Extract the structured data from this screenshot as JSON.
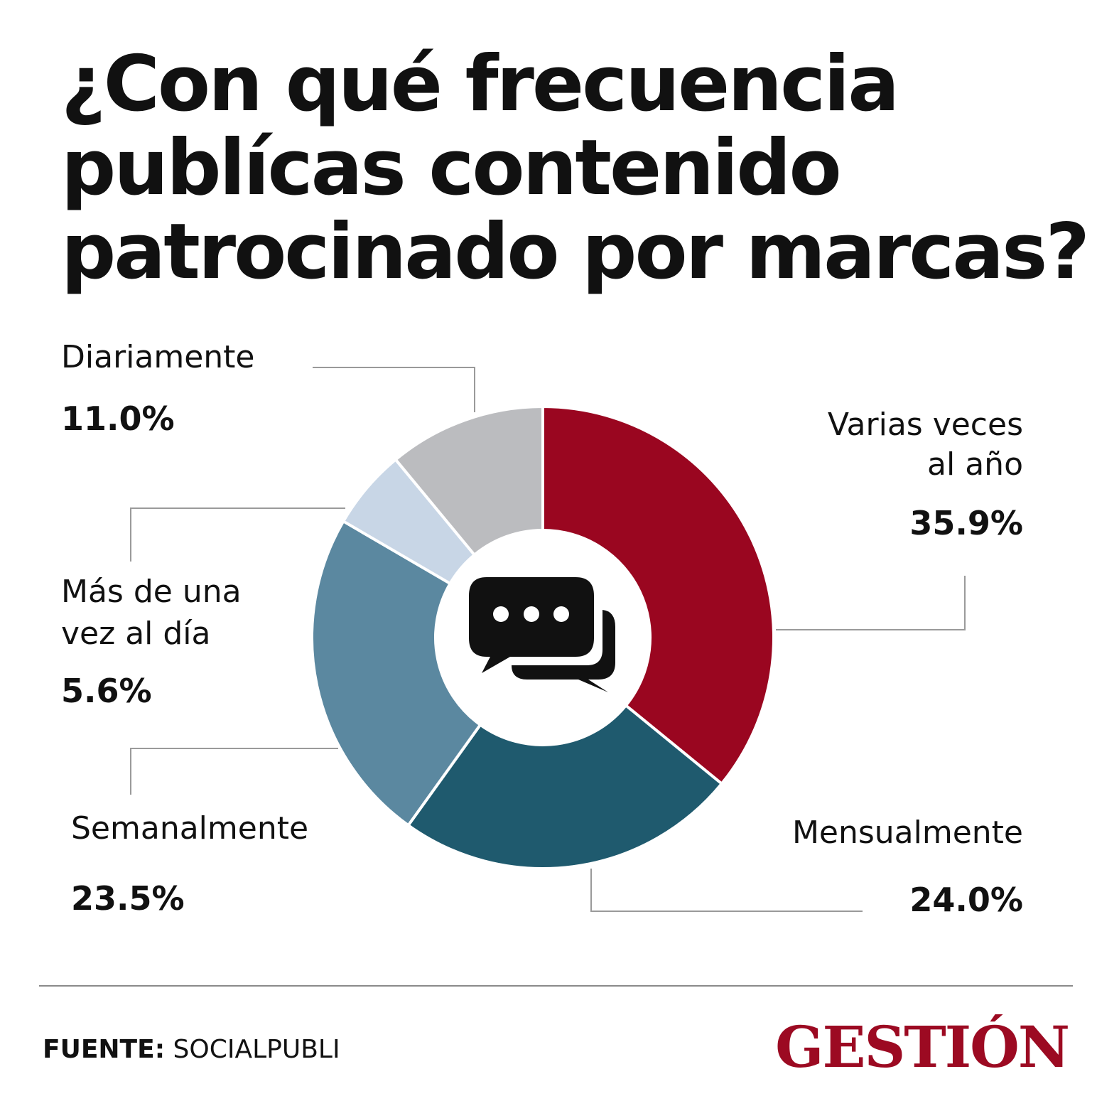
{
  "chart_data": {
    "type": "pie",
    "title": "¿Con qué frecuencia publícas contenido patrocinado por marcas?",
    "title_lines": [
      "¿Con qué frecuencia",
      "publícas contenido",
      "patrocinado por marcas?"
    ],
    "slices": [
      {
        "label": "Varias veces al año",
        "label_lines": [
          "Varias veces",
          "al año"
        ],
        "value": 35.9,
        "value_text": "35.9%",
        "color": "#9a0620"
      },
      {
        "label": "Mensualmente",
        "label_lines": [
          "Mensualmente"
        ],
        "value": 24.0,
        "value_text": "24.0%",
        "color": "#1f5a6e"
      },
      {
        "label": "Semanalmente",
        "label_lines": [
          "Semanalmente"
        ],
        "value": 23.5,
        "value_text": "23.5%",
        "color": "#5b88a0"
      },
      {
        "label": "Más de una vez al día",
        "label_lines": [
          "Más de una",
          "vez al día"
        ],
        "value": 5.6,
        "value_text": "5.6%",
        "color": "#c8d6e6"
      },
      {
        "label": "Diariamente",
        "label_lines": [
          "Diariamente"
        ],
        "value": 11.0,
        "value_text": "11.0%",
        "color": "#bbbcbf"
      }
    ],
    "center_icon": "chat-bubbles-icon"
  },
  "footer": {
    "source_key": "FUENTE:",
    "source_value": "SOCIALPUBLI",
    "logo_text": "GESTIÓN"
  }
}
